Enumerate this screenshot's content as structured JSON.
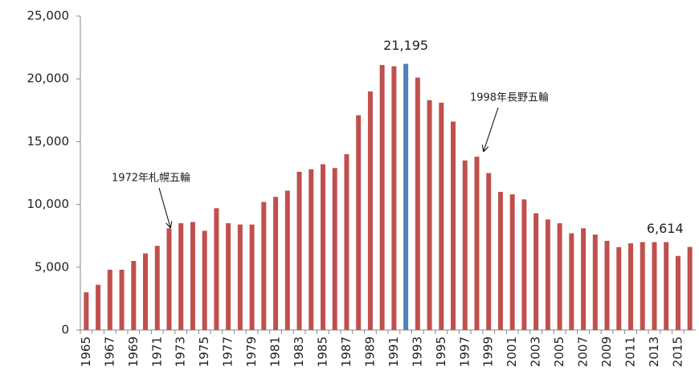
{
  "chart_data": {
    "type": "bar",
    "categories": [
      "1965",
      null,
      "1967",
      null,
      "1969",
      null,
      "1971",
      null,
      "1973",
      null,
      "1975",
      null,
      "1977",
      null,
      "1979",
      null,
      "1981",
      null,
      "1983",
      null,
      "1985",
      null,
      "1987",
      null,
      "1989",
      null,
      "1991",
      null,
      "1993",
      null,
      "1995",
      null,
      "1997",
      null,
      "1999",
      null,
      "2001",
      null,
      "2003",
      null,
      "2005",
      null,
      "2007",
      null,
      "2009",
      null,
      "2011",
      null,
      "2013",
      null,
      "2015",
      null
    ],
    "values": [
      3000,
      3600,
      4800,
      4800,
      5500,
      6100,
      6700,
      8100,
      8500,
      8600,
      7900,
      9700,
      8500,
      8400,
      8400,
      10200,
      10600,
      11100,
      12600,
      12800,
      13200,
      12900,
      14000,
      17100,
      19000,
      21100,
      21000,
      21195,
      20100,
      18300,
      18100,
      16600,
      13500,
      13800,
      12500,
      11000,
      10800,
      10400,
      9300,
      8800,
      8500,
      7700,
      8100,
      7600,
      7100,
      6600,
      6900,
      7000,
      7000,
      7000,
      5900,
      6614
    ],
    "value_labels": [
      null,
      null,
      null,
      null,
      null,
      null,
      null,
      null,
      null,
      null,
      null,
      null,
      null,
      null,
      null,
      null,
      null,
      null,
      null,
      null,
      null,
      null,
      null,
      null,
      null,
      null,
      null,
      "21,195",
      null,
      null,
      null,
      null,
      null,
      null,
      null,
      null,
      null,
      null,
      null,
      null,
      null,
      null,
      null,
      null,
      null,
      null,
      null,
      null,
      null,
      null,
      null,
      "6,614"
    ],
    "colors": [
      "#c0504d",
      "#c0504d",
      "#c0504d",
      "#c0504d",
      "#c0504d",
      "#c0504d",
      "#c0504d",
      "#c0504d",
      "#c0504d",
      "#c0504d",
      "#c0504d",
      "#c0504d",
      "#c0504d",
      "#c0504d",
      "#c0504d",
      "#c0504d",
      "#c0504d",
      "#c0504d",
      "#c0504d",
      "#c0504d",
      "#c0504d",
      "#c0504d",
      "#c0504d",
      "#c0504d",
      "#c0504d",
      "#c0504d",
      "#c0504d",
      "#4f81bd",
      "#c0504d",
      "#c0504d",
      "#c0504d",
      "#c0504d",
      "#c0504d",
      "#c0504d",
      "#c0504d",
      "#c0504d",
      "#c0504d",
      "#c0504d",
      "#c0504d",
      "#c0504d",
      "#c0504d",
      "#c0504d",
      "#c0504d",
      "#c0504d",
      "#c0504d",
      "#c0504d",
      "#c0504d",
      "#c0504d",
      "#c0504d",
      "#c0504d",
      "#c0504d",
      "#c0504d"
    ],
    "annotations": [
      {
        "text": "1972年札幌五輪"
      },
      {
        "text": "1998年長野五輪"
      }
    ],
    "ylim": [
      0,
      25000
    ],
    "yticks": [
      0,
      {
        "value": 5000,
        "label": "5,000"
      },
      {
        "value": 10000,
        "label": "10,000"
      },
      {
        "value": 15000,
        "label": "15,000"
      },
      {
        "value": 20000,
        "label": "20,000"
      },
      {
        "value": 25000,
        "label": "25,000"
      }
    ],
    "grid": false
  }
}
